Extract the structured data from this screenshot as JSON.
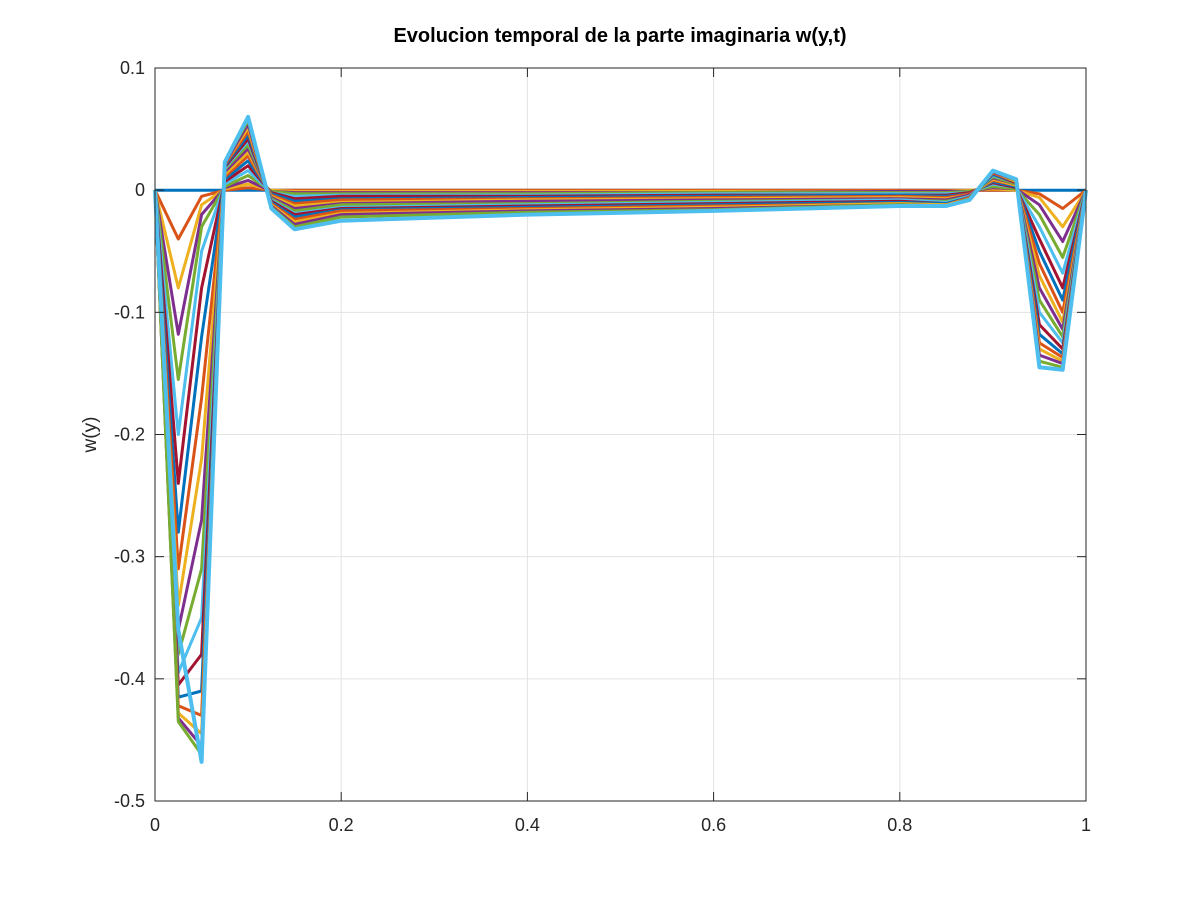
{
  "chart_data": {
    "type": "line",
    "title": "Evolucion temporal de la parte imaginaria w(y,t)",
    "xlabel": "",
    "ylabel": "w(y)",
    "xlim": [
      0,
      1
    ],
    "ylim": [
      -0.5,
      0.1
    ],
    "grid": true,
    "legend": "none",
    "x_ticks": [
      0,
      0.2,
      0.4,
      0.6,
      0.8,
      1
    ],
    "x_tick_labels": [
      "0",
      "0.2",
      "0.4",
      "0.6",
      "0.8",
      "1"
    ],
    "y_ticks": [
      0.1,
      0,
      -0.1,
      -0.2,
      -0.3,
      -0.4,
      -0.5
    ],
    "y_tick_labels": [
      "0.1",
      "0",
      "-0.1",
      "-0.2",
      "-0.3",
      "-0.4",
      "-0.5"
    ],
    "x": [
      0,
      0.025,
      0.05,
      0.075,
      0.1,
      0.125,
      0.15,
      0.2,
      0.4,
      0.6,
      0.8,
      0.85,
      0.875,
      0.9,
      0.925,
      0.95,
      0.975,
      1
    ],
    "colors": [
      "#0072BD",
      "#D95319",
      "#EDB120",
      "#7E2F8E",
      "#77AC30",
      "#4DBEEE",
      "#A2142F"
    ],
    "series": [
      {
        "values": [
          0,
          0,
          0,
          0,
          0,
          0,
          0,
          0,
          0,
          0,
          0,
          0,
          0,
          0,
          0,
          0,
          0,
          0
        ]
      },
      {
        "values": [
          0,
          -0.04,
          -0.005,
          0,
          0.002,
          0,
          0,
          0,
          0,
          0,
          0,
          0,
          0,
          0,
          0,
          -0.003,
          -0.015,
          0
        ]
      },
      {
        "values": [
          0,
          -0.08,
          -0.012,
          0.001,
          0.005,
          0,
          -0.001,
          -0.001,
          -0.001,
          -0.001,
          -0.001,
          -0.001,
          0,
          0.001,
          0,
          -0.006,
          -0.03,
          0
        ]
      },
      {
        "values": [
          0,
          -0.118,
          -0.02,
          0.002,
          0.008,
          -0.001,
          -0.002,
          -0.002,
          -0.002,
          -0.002,
          -0.001,
          -0.001,
          -0.001,
          0.002,
          0.001,
          -0.012,
          -0.042,
          0
        ]
      },
      {
        "values": [
          0,
          -0.155,
          -0.03,
          0.003,
          0.012,
          -0.001,
          -0.003,
          -0.003,
          -0.003,
          -0.002,
          -0.002,
          -0.002,
          -0.001,
          0.003,
          0.001,
          -0.02,
          -0.055,
          0
        ]
      },
      {
        "values": [
          0,
          -0.2,
          -0.05,
          0.005,
          0.016,
          -0.002,
          -0.005,
          -0.004,
          -0.004,
          -0.003,
          -0.003,
          -0.003,
          -0.002,
          0.005,
          0.002,
          -0.03,
          -0.068,
          0
        ]
      },
      {
        "values": [
          0,
          -0.24,
          -0.08,
          0.007,
          0.02,
          -0.002,
          -0.007,
          -0.005,
          -0.005,
          -0.004,
          -0.004,
          -0.004,
          -0.002,
          0.006,
          0.002,
          -0.04,
          -0.08,
          0
        ]
      },
      {
        "values": [
          0,
          -0.28,
          -0.12,
          0.009,
          0.024,
          -0.003,
          -0.009,
          -0.007,
          -0.006,
          -0.005,
          -0.004,
          -0.005,
          -0.003,
          0.007,
          0.003,
          -0.05,
          -0.09,
          0
        ]
      },
      {
        "values": [
          0,
          -0.31,
          -0.17,
          0.011,
          0.028,
          -0.004,
          -0.011,
          -0.008,
          -0.007,
          -0.006,
          -0.005,
          -0.006,
          -0.003,
          0.008,
          0.004,
          -0.06,
          -0.1,
          0
        ]
      },
      {
        "values": [
          0,
          -0.34,
          -0.22,
          0.013,
          0.031,
          -0.005,
          -0.013,
          -0.01,
          -0.008,
          -0.007,
          -0.006,
          -0.007,
          -0.004,
          0.009,
          0.004,
          -0.07,
          -0.108,
          0
        ]
      },
      {
        "values": [
          0,
          -0.36,
          -0.27,
          0.015,
          0.034,
          -0.006,
          -0.015,
          -0.011,
          -0.009,
          -0.008,
          -0.007,
          -0.008,
          -0.004,
          0.01,
          0.005,
          -0.08,
          -0.114,
          0
        ]
      },
      {
        "values": [
          0,
          -0.38,
          -0.31,
          0.017,
          0.037,
          -0.007,
          -0.017,
          -0.012,
          -0.011,
          -0.009,
          -0.008,
          -0.009,
          -0.005,
          0.011,
          0.005,
          -0.09,
          -0.12,
          0
        ]
      },
      {
        "values": [
          0,
          -0.395,
          -0.35,
          0.018,
          0.04,
          -0.008,
          -0.019,
          -0.014,
          -0.012,
          -0.01,
          -0.008,
          -0.01,
          -0.005,
          0.012,
          0.006,
          -0.1,
          -0.125,
          0
        ]
      },
      {
        "values": [
          0,
          -0.405,
          -0.38,
          0.019,
          0.042,
          -0.009,
          -0.02,
          -0.015,
          -0.013,
          -0.011,
          -0.009,
          -0.011,
          -0.006,
          0.013,
          0.006,
          -0.11,
          -0.13,
          0
        ]
      },
      {
        "values": [
          0,
          -0.415,
          -0.41,
          0.02,
          0.045,
          -0.01,
          -0.022,
          -0.016,
          -0.014,
          -0.012,
          -0.01,
          -0.011,
          -0.006,
          0.013,
          0.007,
          -0.118,
          -0.134,
          0
        ]
      },
      {
        "values": [
          0,
          -0.422,
          -0.43,
          0.021,
          0.048,
          -0.011,
          -0.024,
          -0.017,
          -0.015,
          -0.013,
          -0.011,
          -0.012,
          -0.006,
          0.014,
          0.007,
          -0.125,
          -0.137,
          0
        ]
      },
      {
        "values": [
          0,
          -0.428,
          -0.445,
          0.022,
          0.051,
          -0.012,
          -0.026,
          -0.019,
          -0.016,
          -0.014,
          -0.011,
          -0.012,
          -0.007,
          0.015,
          0.007,
          -0.13,
          -0.14,
          0
        ]
      },
      {
        "values": [
          0,
          -0.432,
          -0.455,
          0.022,
          0.054,
          -0.013,
          -0.028,
          -0.02,
          -0.017,
          -0.015,
          -0.012,
          -0.013,
          -0.007,
          0.015,
          0.008,
          -0.135,
          -0.142,
          0
        ]
      },
      {
        "values": [
          0,
          -0.435,
          -0.462,
          0.023,
          0.057,
          -0.014,
          -0.03,
          -0.022,
          -0.018,
          -0.016,
          -0.012,
          -0.013,
          -0.007,
          0.016,
          0.008,
          -0.14,
          -0.145,
          0
        ]
      },
      {
        "values": [
          0,
          -0.36,
          -0.468,
          0.023,
          0.06,
          -0.015,
          -0.032,
          -0.025,
          -0.02,
          -0.017,
          -0.013,
          -0.013,
          -0.008,
          0.016,
          0.009,
          -0.145,
          -0.147,
          0
        ]
      }
    ]
  }
}
